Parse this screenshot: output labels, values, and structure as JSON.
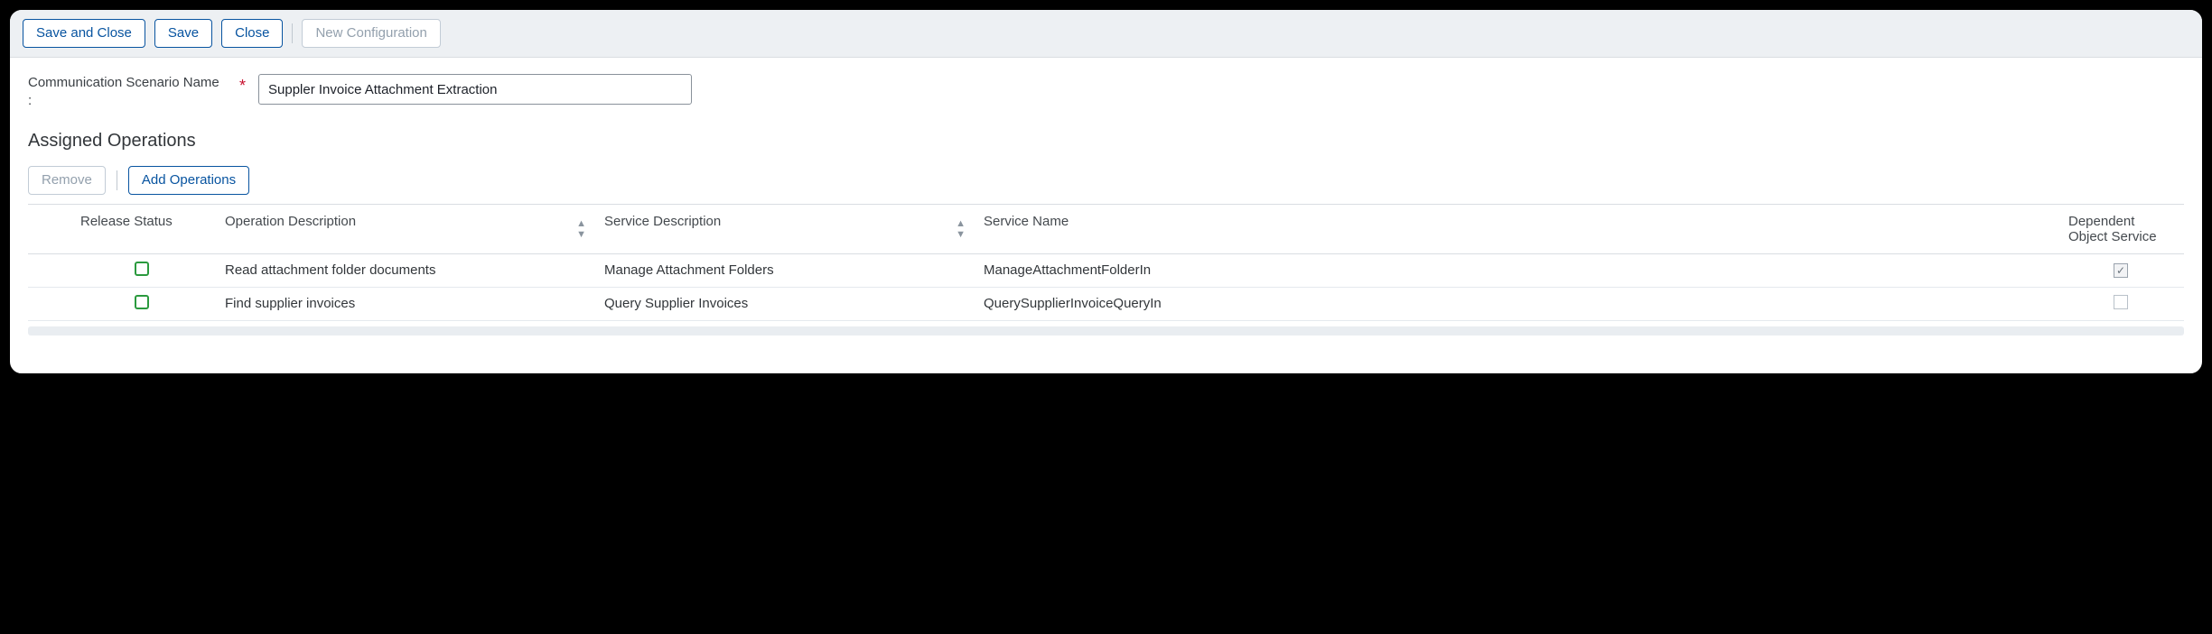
{
  "toolbar": {
    "save_and_close": "Save and Close",
    "save": "Save",
    "close": "Close",
    "new_configuration": "New Configuration"
  },
  "form": {
    "scenario_name_label": "Communication Scenario Name\n:",
    "scenario_name_value": "Suppler Invoice Attachment Extraction"
  },
  "section_assigned_ops": "Assigned Operations",
  "ops_toolbar": {
    "remove": "Remove",
    "add_operations": "Add Operations"
  },
  "columns": {
    "release_status": "Release Status",
    "operation_description": "Operation Description",
    "service_description": "Service Description",
    "service_name": "Service Name",
    "dependent_object_service": "Dependent Object Service"
  },
  "rows": [
    {
      "operation_description": "Read attachment folder documents",
      "service_description": "Manage Attachment Folders",
      "service_name": "ManageAttachmentFolderIn",
      "dependent_checked": true
    },
    {
      "operation_description": "Find supplier invoices",
      "service_description": "Query Supplier Invoices",
      "service_name": "QuerySupplierInvoiceQueryIn",
      "dependent_checked": false
    }
  ],
  "colors": {
    "accent": "#0854a0",
    "release_green": "#2b9a3e",
    "required_red": "#c8102e",
    "toolbar_bg": "#edf0f3",
    "border": "#d9dde2"
  }
}
